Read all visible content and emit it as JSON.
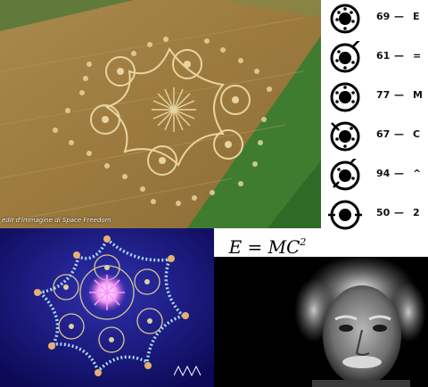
{
  "photo": {
    "credit": "edit d'immagine di Space Freedom",
    "icon": "crop-circle-photo"
  },
  "legend": {
    "rows": [
      {
        "number": "69",
        "symbol": "E"
      },
      {
        "number": "61",
        "symbol": "="
      },
      {
        "number": "77",
        "symbol": "M"
      },
      {
        "number": "67",
        "symbol": "C"
      },
      {
        "number": "94",
        "symbol": "^"
      },
      {
        "number": "50",
        "symbol": "2"
      }
    ]
  },
  "formula": {
    "lhs": "E = MC",
    "exponent": "2"
  },
  "render": {
    "icon": "crop-circle-rendering",
    "mark": "zigzag-icon"
  },
  "portrait": {
    "icon": "portrait-photo"
  }
}
